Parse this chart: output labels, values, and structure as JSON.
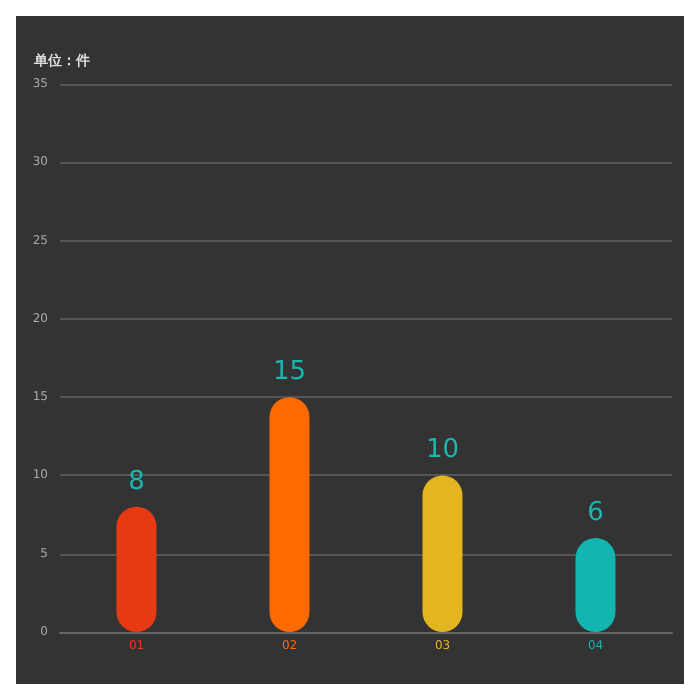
{
  "chart_data": {
    "type": "bar",
    "ylabel": "单位：件",
    "categories": [
      "01",
      "02",
      "03",
      "04"
    ],
    "values": [
      8,
      15,
      10,
      6
    ],
    "colors": [
      "#e63a12",
      "#ff6a00",
      "#e3b521",
      "#13b5b1"
    ],
    "ylim": [
      0,
      35
    ],
    "yticks": [
      0,
      5,
      10,
      15,
      20,
      25,
      30,
      35
    ],
    "grid": "y",
    "data_labels": true
  }
}
